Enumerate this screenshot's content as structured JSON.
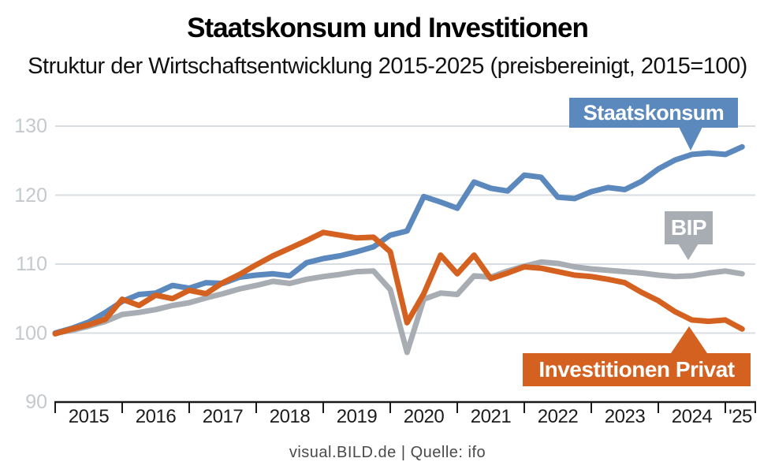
{
  "header": {
    "title": "Staatskonsum und Investitionen",
    "subtitle": "Struktur der Wirtschaftsentwicklung 2015-2025 (preisbereinigt, 2015=100)"
  },
  "footer": {
    "credit": "visual.BILD.de | Quelle: ifo"
  },
  "colors": {
    "staatskonsum": "#5b89bd",
    "bip": "#a7adb2",
    "investitionen": "#d4611f",
    "grid": "#d8dde2",
    "axis": "#1a1a1a",
    "ytick_label": "#c4c9ce",
    "xtick_label": "#1c1c1c"
  },
  "annotations": {
    "staatskonsum_label": "Staatskonsum",
    "bip_label": "BIP",
    "investitionen_label": "Investitionen Privat"
  },
  "chart_data": {
    "type": "line",
    "title": "Staatskonsum und Investitionen",
    "subtitle": "Struktur der Wirtschaftsentwicklung 2015-2025 (preisbereinigt, 2015=100)",
    "x_unit": "quarter",
    "grid": "horizontal",
    "ylim": [
      90,
      133
    ],
    "yticks": [
      90,
      100,
      110,
      120,
      130
    ],
    "xticks_years": [
      "2015",
      "2016",
      "2017",
      "2018",
      "2019",
      "2020",
      "2021",
      "2022",
      "2023",
      "2024",
      "'25"
    ],
    "categories": [
      "2015Q1",
      "2015Q2",
      "2015Q3",
      "2015Q4",
      "2016Q1",
      "2016Q2",
      "2016Q3",
      "2016Q4",
      "2017Q1",
      "2017Q2",
      "2017Q3",
      "2017Q4",
      "2018Q1",
      "2018Q2",
      "2018Q3",
      "2018Q4",
      "2019Q1",
      "2019Q2",
      "2019Q3",
      "2019Q4",
      "2020Q1",
      "2020Q2",
      "2020Q3",
      "2020Q4",
      "2021Q1",
      "2021Q2",
      "2021Q3",
      "2021Q4",
      "2022Q1",
      "2022Q2",
      "2022Q3",
      "2022Q4",
      "2023Q1",
      "2023Q2",
      "2023Q3",
      "2023Q4",
      "2024Q1",
      "2024Q2",
      "2024Q3",
      "2024Q4",
      "2025Q1",
      "2025Q2"
    ],
    "series": [
      {
        "name": "BIP",
        "color_key": "bip",
        "values": [
          100,
          100.4,
          101,
          101.7,
          102.7,
          103,
          103.4,
          104,
          104.4,
          105.1,
          105.7,
          106.4,
          106.9,
          107.5,
          107.2,
          107.8,
          108.2,
          108.5,
          108.9,
          109,
          106.3,
          97.2,
          104.9,
          105.8,
          105.6,
          108.3,
          108.1,
          109,
          109.7,
          110.3,
          110.1,
          109.6,
          109.3,
          109.1,
          108.9,
          108.7,
          108.4,
          108.2,
          108.3,
          108.7,
          109,
          108.6
        ]
      },
      {
        "name": "Staatskonsum",
        "color_key": "staatskonsum",
        "values": [
          100,
          100.7,
          101.6,
          103,
          104.6,
          105.6,
          105.8,
          106.9,
          106.5,
          107.3,
          107.2,
          108.1,
          108.4,
          108.6,
          108.3,
          110.2,
          110.8,
          111.2,
          111.8,
          112.5,
          114.2,
          114.8,
          119.8,
          119,
          118.1,
          121.9,
          121,
          120.6,
          122.9,
          122.6,
          119.7,
          119.5,
          120.5,
          121.1,
          120.8,
          122,
          123.8,
          125.1,
          125.9,
          126.1,
          125.9,
          127
        ]
      },
      {
        "name": "Investitionen Privat",
        "color_key": "investitionen",
        "values": [
          99.9,
          100.6,
          101.2,
          102,
          104.9,
          104,
          105.5,
          105,
          106.2,
          105.7,
          107.3,
          108.5,
          109.9,
          111.2,
          112.3,
          113.4,
          114.6,
          114.2,
          113.8,
          113.9,
          111.8,
          101.5,
          105.7,
          111.3,
          108.6,
          111.3,
          107.9,
          108.7,
          109.6,
          109.4,
          108.9,
          108.4,
          108.2,
          107.8,
          107.3,
          105.9,
          104.7,
          103.1,
          101.9,
          101.7,
          101.9,
          100.6
        ]
      }
    ]
  }
}
